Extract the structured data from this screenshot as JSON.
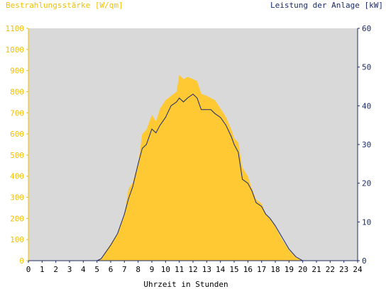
{
  "chart_data": {
    "type": "area",
    "title_left": "Bestrahlungsstärke [W/qm]",
    "title_right": "Leistung der Anlage [kW]",
    "xlabel": "Uhrzeit in Stunden",
    "xlim": [
      0,
      24
    ],
    "ylim_left": [
      0,
      1100
    ],
    "ylim_right": [
      0,
      60
    ],
    "x_ticks": [
      "0",
      "1",
      "2",
      "3",
      "4",
      "5",
      "6",
      "7",
      "8",
      "9",
      "10",
      "11",
      "12",
      "13",
      "14",
      "15",
      "16",
      "17",
      "18",
      "19",
      "20",
      "21",
      "22",
      "23",
      "24"
    ],
    "y_left_ticks": [
      "0",
      "100",
      "200",
      "300",
      "400",
      "500",
      "600",
      "700",
      "800",
      "900",
      "1000",
      "1100"
    ],
    "y_right_ticks": [
      "0",
      "10",
      "20",
      "30",
      "40",
      "50",
      "60"
    ],
    "colors": {
      "plot_background": "#d9d9d9",
      "irradiance_fill": "#ffc933",
      "power_line": "#1a2a6b",
      "left_axis": "#f5c000",
      "right_axis": "#1a2a6b"
    },
    "series": [
      {
        "name": "Bestrahlungsstärke",
        "axis": "left",
        "x": [
          0,
          5.0,
          5.3,
          5.6,
          6.0,
          6.5,
          7.0,
          7.3,
          7.6,
          8.0,
          8.3,
          8.6,
          9.0,
          9.3,
          9.6,
          10.0,
          10.4,
          10.8,
          11.0,
          11.3,
          11.6,
          12.0,
          12.3,
          12.6,
          13.0,
          13.3,
          13.6,
          14.0,
          14.4,
          14.8,
          15.0,
          15.3,
          15.6,
          16.0,
          16.3,
          16.6,
          17.0,
          17.3,
          17.6,
          18.0,
          18.5,
          19.0,
          19.5,
          20.0,
          24
        ],
        "values": [
          0,
          0,
          10,
          40,
          80,
          130,
          220,
          340,
          370,
          460,
          600,
          620,
          690,
          660,
          720,
          760,
          780,
          800,
          880,
          860,
          870,
          860,
          850,
          790,
          780,
          770,
          760,
          720,
          680,
          620,
          580,
          560,
          440,
          400,
          340,
          290,
          270,
          220,
          200,
          160,
          100,
          50,
          15,
          0,
          0
        ]
      },
      {
        "name": "Leistung der Anlage",
        "axis": "right",
        "x": [
          0,
          5.0,
          5.3,
          5.6,
          6.0,
          6.5,
          7.0,
          7.3,
          7.6,
          8.0,
          8.3,
          8.6,
          9.0,
          9.3,
          9.6,
          10.0,
          10.4,
          10.8,
          11.0,
          11.3,
          11.6,
          12.0,
          12.3,
          12.6,
          13.0,
          13.3,
          13.6,
          14.0,
          14.4,
          14.8,
          15.0,
          15.3,
          15.6,
          16.0,
          16.3,
          16.6,
          17.0,
          17.3,
          17.6,
          18.0,
          18.5,
          19.0,
          19.5,
          20.0,
          24
        ],
        "values": [
          0,
          0,
          0.5,
          2,
          4,
          7,
          12,
          16,
          19,
          25,
          29,
          30,
          34,
          33,
          35,
          37,
          40,
          41,
          42,
          41,
          42,
          43,
          42,
          39,
          39,
          39,
          38,
          37,
          35,
          32,
          30,
          28,
          21,
          20,
          18,
          15,
          14,
          12,
          11,
          9,
          6,
          3,
          1,
          0,
          0
        ]
      }
    ]
  }
}
